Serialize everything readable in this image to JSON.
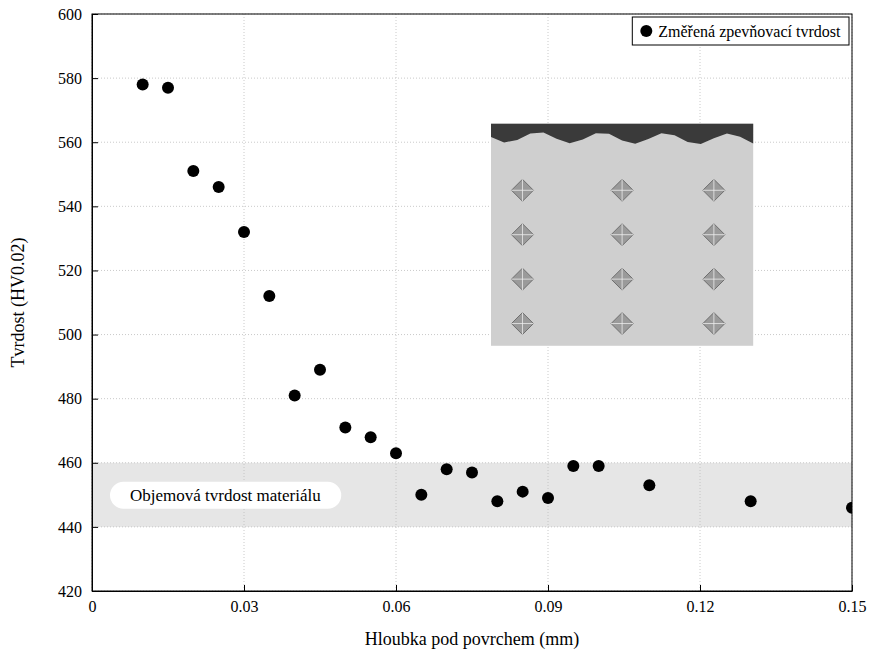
{
  "chart_data": {
    "type": "scatter",
    "x_label": "Hloubka pod povrchem (mm)",
    "y_label": "Tvrdost (HV0.02)",
    "x": [
      0.01,
      0.015,
      0.02,
      0.025,
      0.03,
      0.035,
      0.04,
      0.045,
      0.05,
      0.055,
      0.06,
      0.065,
      0.07,
      0.075,
      0.08,
      0.085,
      0.09,
      0.095,
      0.1,
      0.11,
      0.13,
      0.15
    ],
    "series": [
      {
        "name": "Změřená zpevňovací tvrdost",
        "color": "#000000",
        "marker": "circle",
        "values": [
          578,
          577,
          551,
          546,
          532,
          512,
          481,
          489,
          471,
          468,
          463,
          450,
          458,
          457,
          448,
          451,
          449,
          459,
          459,
          453,
          448,
          446
        ]
      }
    ],
    "band": {
      "label": "Objemová tvrdost materiálu",
      "range": [
        440,
        460
      ]
    },
    "xlim": [
      0,
      0.15
    ],
    "xticks": [
      0,
      0.03,
      0.06,
      0.09,
      0.12,
      0.15
    ],
    "ylim": [
      420,
      600
    ],
    "yticks": [
      420,
      440,
      460,
      480,
      500,
      520,
      540,
      560,
      580,
      600
    ],
    "grid": true,
    "legend": "upper right"
  }
}
